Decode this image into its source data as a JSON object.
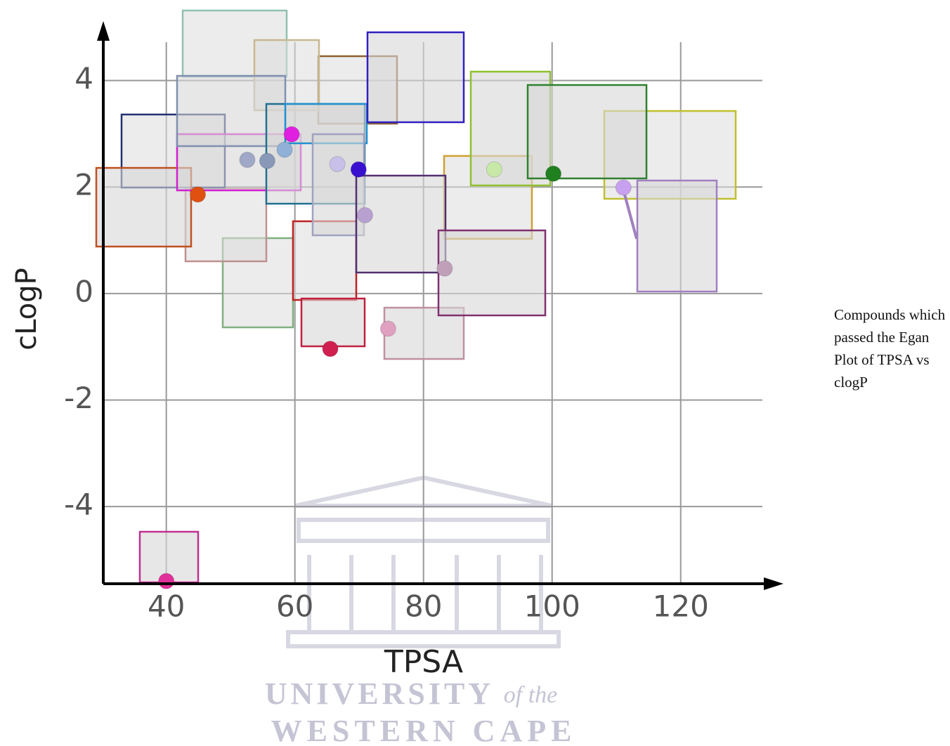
{
  "chart_data": {
    "type": "scatter",
    "x_label": "TPSA",
    "y_label": "cLogP",
    "x": [
      40,
      44.9,
      59.5,
      52.6,
      55.7,
      58.4,
      66.6,
      69.9,
      70.9,
      65.5,
      74.5,
      83.3,
      91.0,
      100.2,
      111.1
    ],
    "values": [
      -5.4,
      1.86,
      2.99,
      2.51,
      2.49,
      2.7,
      2.43,
      2.33,
      1.47,
      -1.04,
      -0.66,
      0.47,
      2.33,
      2.25,
      1.99
    ],
    "colors": [
      "#e0309a",
      "#e05010",
      "#e020e0",
      "#a0a8c8",
      "#8898b8",
      "#90b0d8",
      "#c8c0e8",
      "#3a10d0",
      "#b8a0d0",
      "#d02050",
      "#e0a0c0",
      "#c0a0b8",
      "#c8e8a8",
      "#208020",
      "#c8a0f0"
    ],
    "xlim": [
      30.2,
      135
    ],
    "ylim": [
      -5.45,
      5.05
    ],
    "xticks": [
      40,
      60,
      80,
      100,
      120
    ],
    "yticks": [
      -4,
      -2,
      0,
      2,
      4
    ],
    "grid": true
  },
  "caption": "Compounds which passed the Egan Plot of TPSA vs clogP",
  "watermark": {
    "line1": "UNIVERSITY",
    "line1_suffix": "of the",
    "line2": "WESTERN CAPE"
  }
}
